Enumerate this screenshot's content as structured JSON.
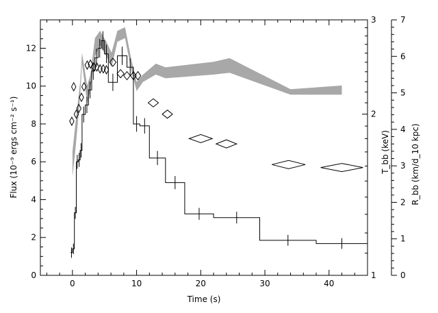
{
  "chart_data": {
    "type": "line",
    "axes": {
      "x": {
        "label": "Time (s)",
        "range": [
          -5,
          46
        ],
        "ticks": [
          0,
          10,
          20,
          30,
          40
        ],
        "tick_labels": [
          "0",
          "10",
          "20",
          "30",
          "40"
        ]
      },
      "y_left": {
        "label": "Flux (10⁻⁹ ergs cm⁻² s⁻¹)",
        "range": [
          0,
          13.5
        ],
        "ticks": [
          0,
          2,
          4,
          6,
          8,
          10,
          12
        ],
        "tick_labels": [
          "0",
          "2",
          "4",
          "6",
          "8",
          "10",
          "12"
        ]
      },
      "y_right_temperature": {
        "label": "T_bb (keV)",
        "scale": "log",
        "range": [
          1,
          3
        ],
        "ticks": [
          1,
          2,
          3
        ],
        "tick_labels": [
          "1",
          "2",
          "3"
        ]
      },
      "y_right_radius": {
        "label": "R_bb (km/d_10 kpc)",
        "range": [
          0,
          7
        ],
        "ticks": [
          0,
          1,
          2,
          3,
          4,
          5,
          6,
          7
        ],
        "tick_labels": [
          "0",
          "1",
          "2",
          "3",
          "4",
          "5",
          "6",
          "7"
        ]
      }
    },
    "series": [
      {
        "kind": "flux-histogram",
        "axis": "y_left",
        "bins": [
          [
            -0.3,
            0.0,
            1.2
          ],
          [
            0.0,
            0.3,
            1.4
          ],
          [
            0.3,
            0.6,
            3.3
          ],
          [
            0.6,
            0.9,
            6.0
          ],
          [
            0.9,
            1.2,
            6.1
          ],
          [
            1.2,
            1.5,
            6.6
          ],
          [
            1.5,
            2.0,
            8.5
          ],
          [
            2.0,
            2.5,
            9.0
          ],
          [
            2.5,
            3.0,
            9.8
          ],
          [
            3.0,
            3.5,
            10.8
          ],
          [
            3.5,
            4.0,
            11.5
          ],
          [
            4.0,
            4.5,
            12.0
          ],
          [
            4.5,
            5.0,
            12.4
          ],
          [
            5.0,
            5.6,
            11.7
          ],
          [
            5.6,
            7.0,
            10.2
          ],
          [
            7.0,
            8.5,
            11.6
          ],
          [
            8.5,
            9.5,
            11.0
          ],
          [
            9.5,
            10.5,
            8.0
          ],
          [
            10.5,
            12.0,
            7.9
          ],
          [
            12.0,
            14.5,
            6.2
          ],
          [
            14.5,
            17.5,
            4.9
          ],
          [
            17.5,
            22.0,
            3.25
          ],
          [
            22.0,
            29.2,
            3.05
          ],
          [
            29.2,
            38.0,
            1.85
          ],
          [
            38.0,
            46.0,
            1.68
          ]
        ]
      },
      {
        "kind": "temperature-diamonds",
        "axis": "y_right_temperature",
        "points": [
          [
            -0.1,
            0.1,
            1.94
          ],
          [
            0.2,
            0.15,
            2.25
          ],
          [
            0.6,
            0.2,
            2.0
          ],
          [
            1.0,
            0.2,
            2.05
          ],
          [
            1.4,
            0.2,
            2.15
          ],
          [
            1.8,
            0.2,
            2.25
          ],
          [
            2.3,
            0.2,
            2.47
          ],
          [
            2.8,
            0.2,
            2.48
          ],
          [
            3.3,
            0.2,
            2.45
          ],
          [
            3.8,
            0.2,
            2.45
          ],
          [
            4.3,
            0.2,
            2.43
          ],
          [
            4.8,
            0.25,
            2.43
          ],
          [
            5.3,
            0.3,
            2.42
          ],
          [
            6.3,
            0.5,
            2.5
          ],
          [
            7.5,
            0.55,
            2.38
          ],
          [
            8.5,
            0.5,
            2.36
          ],
          [
            9.5,
            0.45,
            2.36
          ],
          [
            10.2,
            0.45,
            2.36
          ],
          [
            12.6,
            0.8,
            2.1
          ],
          [
            14.8,
            0.8,
            2.0
          ],
          [
            20.0,
            1.8,
            1.8
          ],
          [
            24.0,
            1.6,
            1.76
          ],
          [
            33.7,
            2.6,
            1.61
          ],
          [
            42.0,
            3.3,
            1.59
          ]
        ]
      },
      {
        "kind": "radius-band",
        "axis": "y_right_radius",
        "points": [
          [
            0.0,
            2.7,
            3.4
          ],
          [
            0.5,
            3.5,
            4.2
          ],
          [
            1.2,
            4.9,
            5.3
          ],
          [
            1.5,
            5.8,
            6.1
          ],
          [
            2.3,
            4.7,
            5.2
          ],
          [
            2.8,
            5.1,
            5.5
          ],
          [
            3.5,
            6.0,
            6.5
          ],
          [
            4.3,
            6.3,
            6.7
          ],
          [
            5.3,
            6.0,
            6.4
          ],
          [
            6.1,
            5.7,
            6.1
          ],
          [
            7.0,
            6.4,
            6.7
          ],
          [
            8.2,
            6.5,
            6.8
          ],
          [
            9.2,
            5.6,
            5.9
          ],
          [
            10.0,
            5.05,
            5.3
          ],
          [
            11.0,
            5.3,
            5.5
          ],
          [
            13.0,
            5.5,
            5.8
          ],
          [
            14.5,
            5.4,
            5.7
          ],
          [
            22.0,
            5.5,
            5.85
          ],
          [
            24.5,
            5.55,
            5.95
          ],
          [
            34.0,
            4.95,
            5.1
          ],
          [
            42.0,
            4.95,
            5.2
          ]
        ]
      }
    ],
    "grid": false,
    "legend": "none"
  }
}
